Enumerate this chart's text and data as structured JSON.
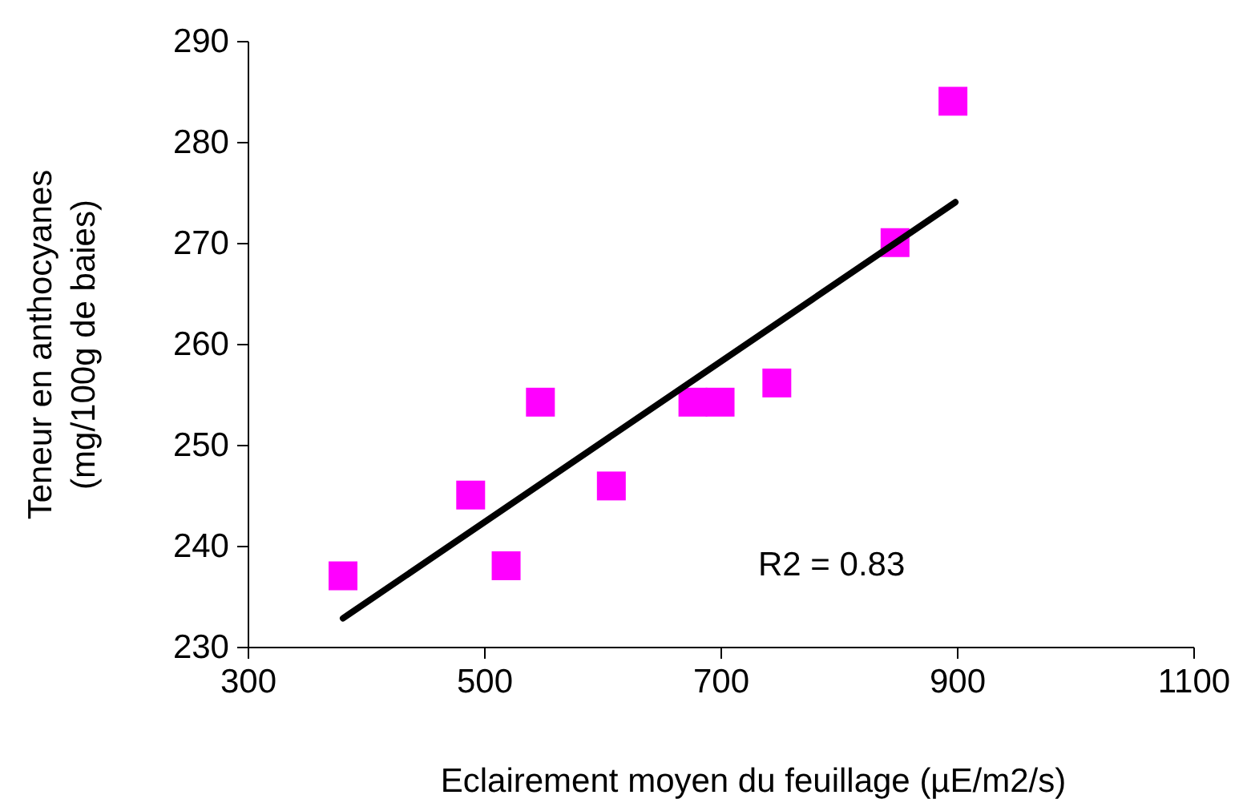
{
  "chart_data": {
    "type": "scatter",
    "xlabel": "Eclairement moyen du feuillage (µE/m2/s)",
    "ylabel": "Teneur en anthocyanes\n(mg/100g de baies)",
    "annotations": [
      "R2 = 0.83"
    ],
    "xlim": [
      300,
      1100
    ],
    "xticks": [
      300,
      500,
      700,
      900,
      1100
    ],
    "ylim": [
      230,
      290
    ],
    "yticks": [
      230,
      240,
      250,
      260,
      270,
      280,
      290
    ],
    "grid": false,
    "marker": "square",
    "series": [
      {
        "color": "#ff00ff",
        "x": [
          380,
          488,
          518,
          547,
          607,
          676,
          699,
          747,
          847,
          896
        ],
        "values": [
          237.1,
          245.1,
          238.1,
          254.3,
          246,
          254.3,
          254.3,
          256.2,
          270.1,
          284.1
        ]
      },
      {
        "type": "line",
        "color": "#000000",
        "line_style": "solid",
        "marker": "none",
        "x": [
          380,
          898
        ],
        "values": [
          232.9,
          274.1
        ]
      }
    ]
  }
}
